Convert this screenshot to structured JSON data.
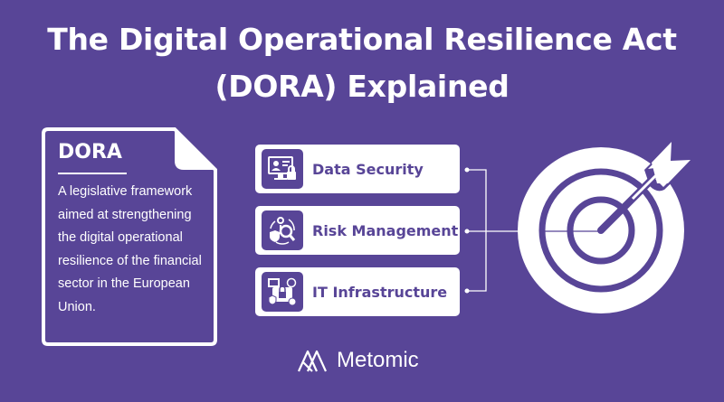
{
  "title": {
    "line1": "The Digital Operational Resilience Act",
    "line2": "(DORA) Explained"
  },
  "definition": {
    "heading": "DORA",
    "body": "A legislative framework aimed at strengthening the digital operational resilience of the financial sector in the European Union."
  },
  "pillars": [
    {
      "label": "Data Security",
      "icon": "computer-lock-icon"
    },
    {
      "label": "Risk Management",
      "icon": "risk-magnifier-icon"
    },
    {
      "label": "IT Infrastructure",
      "icon": "infrastructure-icon"
    }
  ],
  "goal_icon": "target-arrow-icon",
  "brand": {
    "name": "Metomic"
  },
  "colors": {
    "background": "#584597",
    "foreground": "#ffffff"
  }
}
